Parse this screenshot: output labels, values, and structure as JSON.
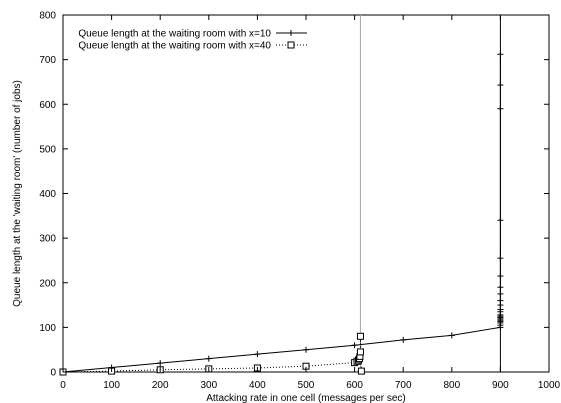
{
  "chart_data": {
    "type": "line",
    "title": "",
    "xlabel": "Attacking rate in one cell (messages per sec)",
    "ylabel": "Queue length at the 'waiting room' (number of jobs)",
    "xlim": [
      0,
      1000
    ],
    "ylim": [
      0,
      800
    ],
    "xticks": [
      "0",
      "100",
      "200",
      "300",
      "400",
      "500",
      "600",
      "700",
      "800",
      "900",
      "1000"
    ],
    "yticks": [
      "0",
      "100",
      "200",
      "300",
      "400",
      "500",
      "600",
      "700",
      "800"
    ],
    "grid": false,
    "legend_position": "top-left",
    "vertical_reference_lines": [
      {
        "x": 612,
        "color": "#a6a6a6"
      },
      {
        "x": 900,
        "color": "#000000"
      }
    ],
    "series": [
      {
        "name": "Queue length at the waiting room with x=10",
        "line_style": "solid",
        "marker": "plus",
        "color": "#000000",
        "points": [
          [
            0,
            0
          ],
          [
            100,
            10
          ],
          [
            200,
            20
          ],
          [
            300,
            30
          ],
          [
            400,
            40
          ],
          [
            500,
            50
          ],
          [
            600,
            60
          ],
          [
            700,
            72
          ],
          [
            800,
            82
          ],
          [
            900,
            100
          ],
          [
            900,
            105
          ],
          [
            900,
            110
          ],
          [
            900,
            113
          ],
          [
            900,
            116
          ],
          [
            900,
            119
          ],
          [
            900,
            122
          ],
          [
            900,
            125
          ],
          [
            900,
            128
          ],
          [
            900,
            135
          ],
          [
            900,
            140
          ],
          [
            900,
            150
          ],
          [
            900,
            160
          ],
          [
            900,
            175
          ],
          [
            900,
            190
          ],
          [
            900,
            215
          ],
          [
            900,
            255
          ],
          [
            900,
            340
          ],
          [
            900,
            590
          ],
          [
            900,
            643
          ],
          [
            900,
            712
          ]
        ]
      },
      {
        "name": "Queue length at the waiting room with x=40",
        "line_style": "dotted",
        "marker": "square",
        "color": "#000000",
        "points": [
          [
            0,
            0
          ],
          [
            100,
            2
          ],
          [
            200,
            5
          ],
          [
            300,
            7
          ],
          [
            400,
            9
          ],
          [
            500,
            13
          ],
          [
            600,
            21
          ],
          [
            605,
            24
          ],
          [
            608,
            27
          ],
          [
            610,
            30
          ],
          [
            611,
            35
          ],
          [
            612,
            45
          ],
          [
            612,
            80
          ],
          [
            614,
            2
          ]
        ]
      }
    ]
  }
}
